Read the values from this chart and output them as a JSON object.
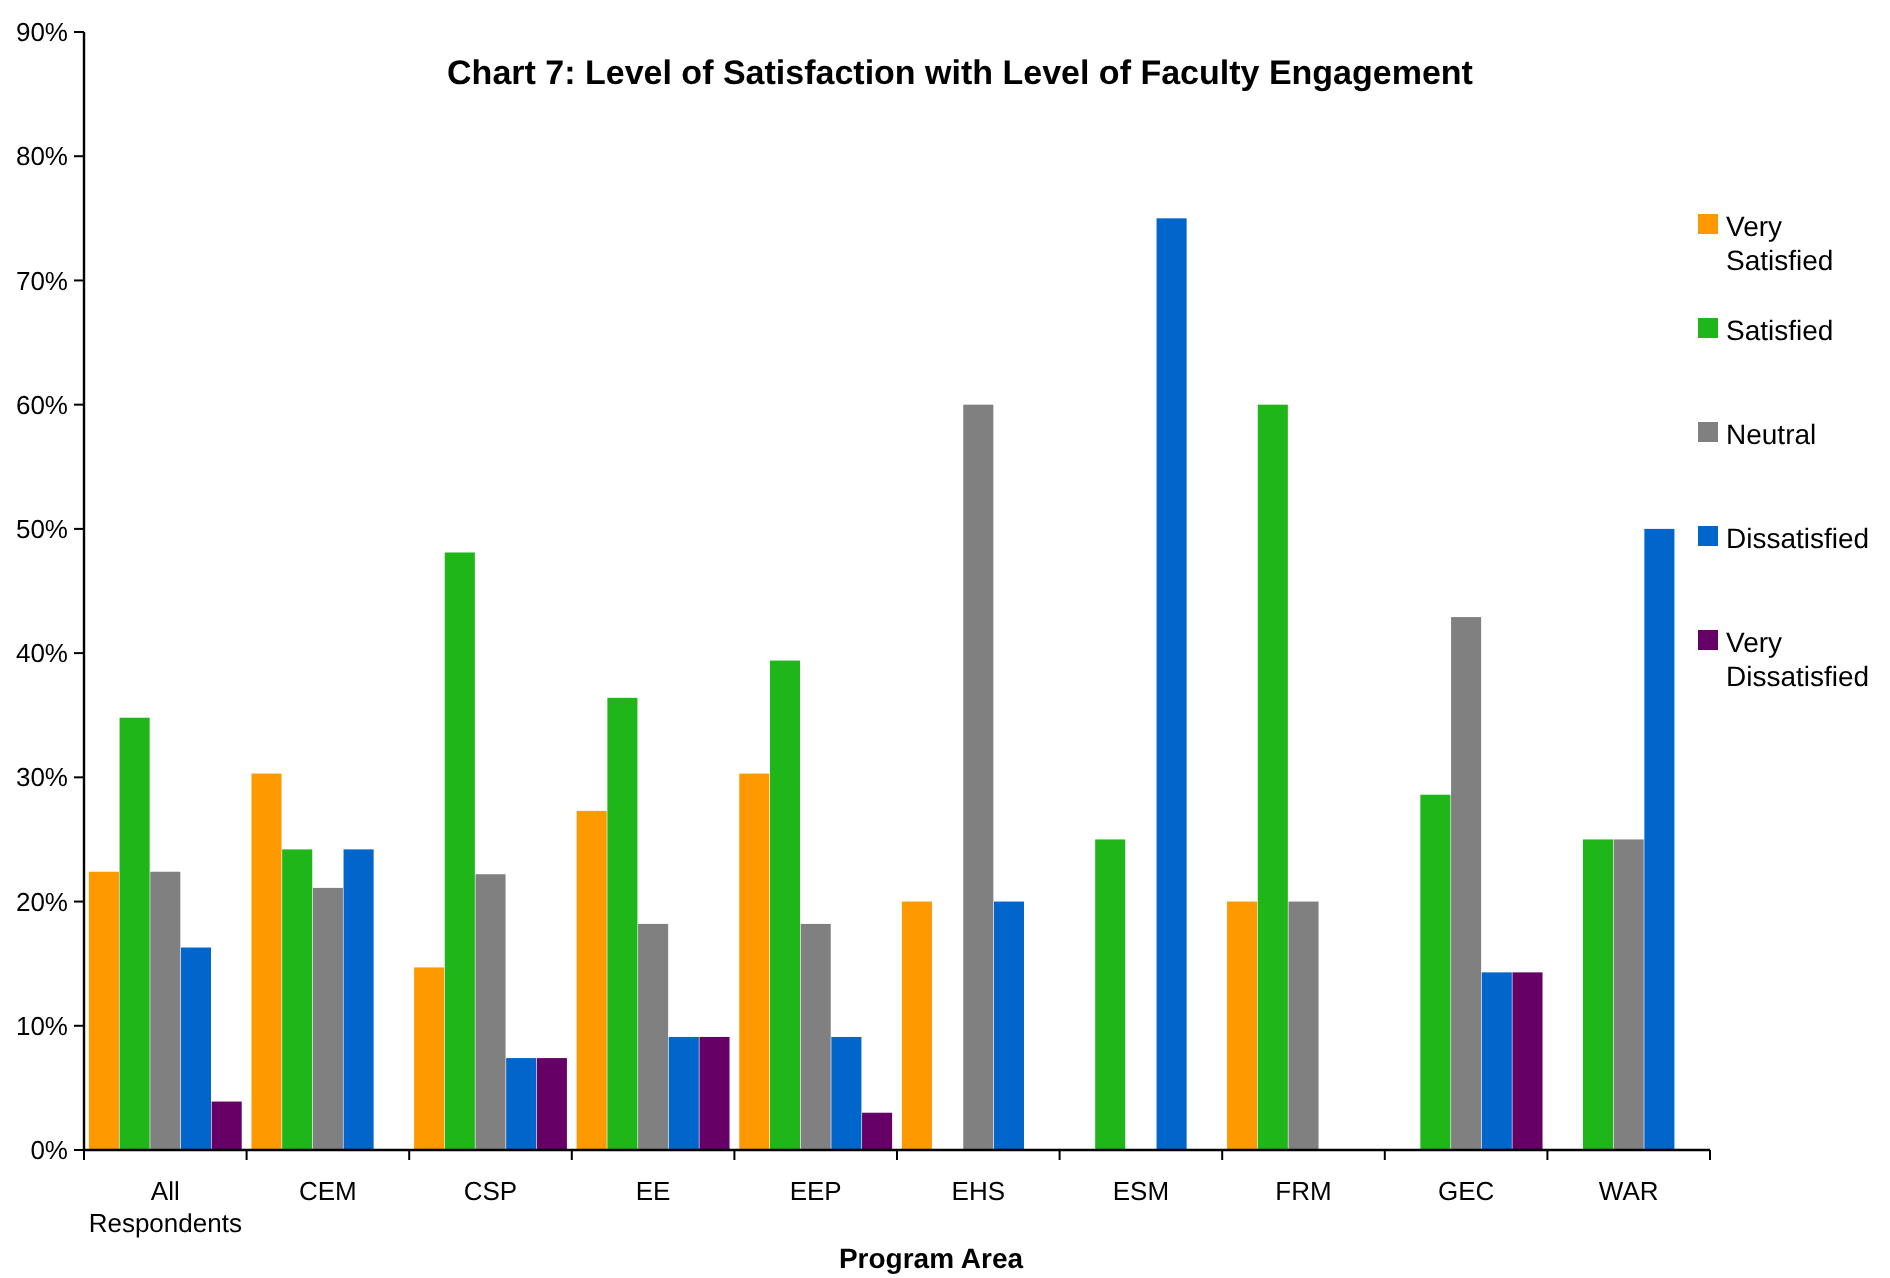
{
  "chart_data": {
    "type": "bar",
    "title": "Chart 7: Level of Satisfaction with Level of Faculty Engagement",
    "xlabel": "Program Area",
    "categories": [
      "All Respondents",
      "CEM",
      "CSP",
      "EE",
      "EEP",
      "EHS",
      "ESM",
      "FRM",
      "GEC",
      "WAR"
    ],
    "series": [
      {
        "name": "Very Satisfied",
        "color": "#ff9900",
        "values": [
          22.4,
          30.3,
          14.7,
          27.3,
          30.3,
          20,
          0,
          20,
          0,
          0
        ]
      },
      {
        "name": "Satisfied",
        "color": "#1fb619",
        "values": [
          34.8,
          24.2,
          48.1,
          36.4,
          39.4,
          0,
          25,
          60,
          28.6,
          25
        ]
      },
      {
        "name": "Neutral",
        "color": "#808080",
        "values": [
          22.4,
          21.1,
          22.2,
          18.2,
          18.2,
          60,
          0,
          20,
          42.9,
          25
        ]
      },
      {
        "name": "Dissatisfied",
        "color": "#0066cc",
        "values": [
          16.3,
          24.2,
          7.4,
          9.1,
          9.1,
          20,
          75,
          0,
          14.3,
          50
        ]
      },
      {
        "name": "Very Dissatisfied",
        "color": "#660066",
        "values": [
          3.9,
          0,
          7.4,
          9.1,
          3,
          0,
          0,
          0,
          14.3,
          0
        ]
      }
    ],
    "ylim": [
      0,
      90
    ],
    "yticks": [
      {
        "value": 0,
        "label": "0%"
      },
      {
        "value": 10,
        "label": "10%"
      },
      {
        "value": 20,
        "label": "20%"
      },
      {
        "value": 30,
        "label": "30%"
      },
      {
        "value": 40,
        "label": "40%"
      },
      {
        "value": 50,
        "label": "50%"
      },
      {
        "value": 60,
        "label": "60%"
      },
      {
        "value": 70,
        "label": "70%"
      },
      {
        "value": 80,
        "label": "80%"
      },
      {
        "value": 90,
        "label": "90%"
      }
    ],
    "grid": false,
    "legend": "right"
  }
}
